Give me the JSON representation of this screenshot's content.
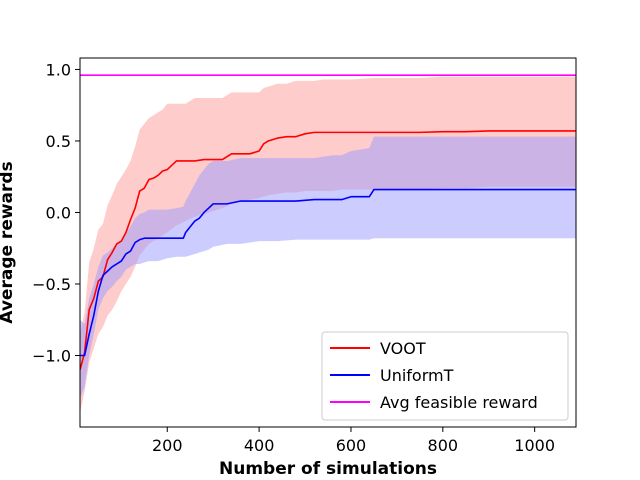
{
  "chart_data": {
    "type": "line",
    "xlabel": "Number of simulations",
    "ylabel": "Average rewards",
    "xlim": [
      10,
      1090
    ],
    "ylim": [
      -1.5,
      1.08
    ],
    "xticks": [
      200,
      400,
      600,
      800,
      1000
    ],
    "yticks": [
      -1.0,
      -0.5,
      0.0,
      0.5,
      1.0
    ],
    "xtick_labels": [
      "200",
      "400",
      "600",
      "800",
      "1000"
    ],
    "ytick_labels": [
      "−1.0",
      "−0.5",
      "0.0",
      "0.5",
      "1.0"
    ],
    "grid": false,
    "legend_position": "lower-right",
    "series": [
      {
        "name": "VOOT",
        "color": "#ff0000",
        "band_color": "#ff9999",
        "band_opacity": 0.5,
        "x": [
          10,
          20,
          30,
          40,
          50,
          60,
          70,
          80,
          90,
          100,
          110,
          120,
          130,
          140,
          150,
          160,
          170,
          180,
          190,
          200,
          220,
          240,
          260,
          280,
          300,
          320,
          340,
          360,
          380,
          400,
          410,
          420,
          440,
          460,
          480,
          500,
          520,
          540,
          560,
          580,
          600,
          650,
          700,
          750,
          800,
          850,
          900,
          1000,
          1090
        ],
        "y": [
          -1.1,
          -0.98,
          -0.68,
          -0.6,
          -0.48,
          -0.45,
          -0.33,
          -0.28,
          -0.22,
          -0.2,
          -0.14,
          -0.05,
          0.03,
          0.15,
          0.17,
          0.23,
          0.24,
          0.26,
          0.29,
          0.3,
          0.36,
          0.36,
          0.36,
          0.37,
          0.37,
          0.37,
          0.41,
          0.41,
          0.41,
          0.43,
          0.48,
          0.5,
          0.52,
          0.53,
          0.53,
          0.55,
          0.56,
          0.56,
          0.56,
          0.56,
          0.56,
          0.56,
          0.56,
          0.56,
          0.565,
          0.565,
          0.57,
          0.57,
          0.57
        ],
        "lower": [
          -1.4,
          -1.25,
          -1.05,
          -0.95,
          -0.85,
          -0.8,
          -0.72,
          -0.68,
          -0.62,
          -0.55,
          -0.5,
          -0.45,
          -0.38,
          -0.3,
          -0.26,
          -0.22,
          -0.2,
          -0.18,
          -0.16,
          -0.14,
          -0.09,
          -0.06,
          -0.03,
          -0.01,
          0.01,
          0.03,
          0.06,
          0.08,
          0.09,
          0.1,
          0.11,
          0.12,
          0.13,
          0.14,
          0.14,
          0.15,
          0.15,
          0.15,
          0.15,
          0.16,
          0.16,
          0.16,
          0.16,
          0.16,
          0.17,
          0.17,
          0.18,
          0.18,
          0.18
        ],
        "upper": [
          -0.85,
          -0.7,
          -0.35,
          -0.25,
          -0.12,
          -0.08,
          0.05,
          0.12,
          0.2,
          0.25,
          0.3,
          0.36,
          0.46,
          0.58,
          0.62,
          0.66,
          0.68,
          0.7,
          0.72,
          0.76,
          0.76,
          0.76,
          0.8,
          0.8,
          0.8,
          0.8,
          0.84,
          0.84,
          0.84,
          0.84,
          0.87,
          0.88,
          0.9,
          0.9,
          0.92,
          0.92,
          0.92,
          0.93,
          0.93,
          0.93,
          0.93,
          0.94,
          0.94,
          0.94,
          0.95,
          0.95,
          0.95,
          0.95,
          0.95
        ]
      },
      {
        "name": "UniformT",
        "color": "#0000ff",
        "band_color": "#9999ff",
        "band_opacity": 0.5,
        "x": [
          10,
          20,
          30,
          40,
          50,
          60,
          70,
          80,
          90,
          100,
          110,
          120,
          130,
          140,
          150,
          160,
          180,
          200,
          220,
          235,
          240,
          250,
          260,
          270,
          280,
          290,
          300,
          330,
          360,
          400,
          440,
          480,
          520,
          560,
          580,
          600,
          640,
          650,
          700,
          800,
          900,
          1000,
          1090
        ],
        "y": [
          -1.0,
          -1.0,
          -0.85,
          -0.72,
          -0.55,
          -0.44,
          -0.41,
          -0.38,
          -0.36,
          -0.34,
          -0.29,
          -0.27,
          -0.21,
          -0.19,
          -0.18,
          -0.18,
          -0.18,
          -0.18,
          -0.18,
          -0.18,
          -0.14,
          -0.1,
          -0.06,
          -0.04,
          0.0,
          0.03,
          0.06,
          0.06,
          0.08,
          0.08,
          0.08,
          0.08,
          0.09,
          0.09,
          0.09,
          0.11,
          0.11,
          0.16,
          0.16,
          0.16,
          0.16,
          0.16,
          0.16
        ],
        "lower": [
          -1.3,
          -1.22,
          -1.0,
          -0.85,
          -0.68,
          -0.6,
          -0.55,
          -0.52,
          -0.48,
          -0.45,
          -0.4,
          -0.38,
          -0.36,
          -0.36,
          -0.35,
          -0.34,
          -0.34,
          -0.32,
          -0.31,
          -0.31,
          -0.31,
          -0.3,
          -0.29,
          -0.28,
          -0.27,
          -0.26,
          -0.24,
          -0.22,
          -0.22,
          -0.2,
          -0.2,
          -0.19,
          -0.19,
          -0.19,
          -0.19,
          -0.19,
          -0.19,
          -0.18,
          -0.18,
          -0.18,
          -0.18,
          -0.18,
          -0.18
        ],
        "upper": [
          -0.75,
          -0.78,
          -0.6,
          -0.5,
          -0.38,
          -0.3,
          -0.28,
          -0.25,
          -0.22,
          -0.2,
          -0.14,
          -0.1,
          -0.04,
          -0.01,
          0.0,
          0.02,
          0.02,
          0.02,
          0.03,
          0.04,
          0.08,
          0.14,
          0.2,
          0.26,
          0.3,
          0.34,
          0.36,
          0.36,
          0.38,
          0.38,
          0.38,
          0.38,
          0.38,
          0.4,
          0.4,
          0.43,
          0.45,
          0.53,
          0.53,
          0.53,
          0.53,
          0.53,
          0.53
        ]
      },
      {
        "name": "Avg feasible reward",
        "color": "#ff00ff",
        "x": [
          10,
          1090
        ],
        "y": [
          0.96,
          0.96
        ]
      }
    ]
  }
}
